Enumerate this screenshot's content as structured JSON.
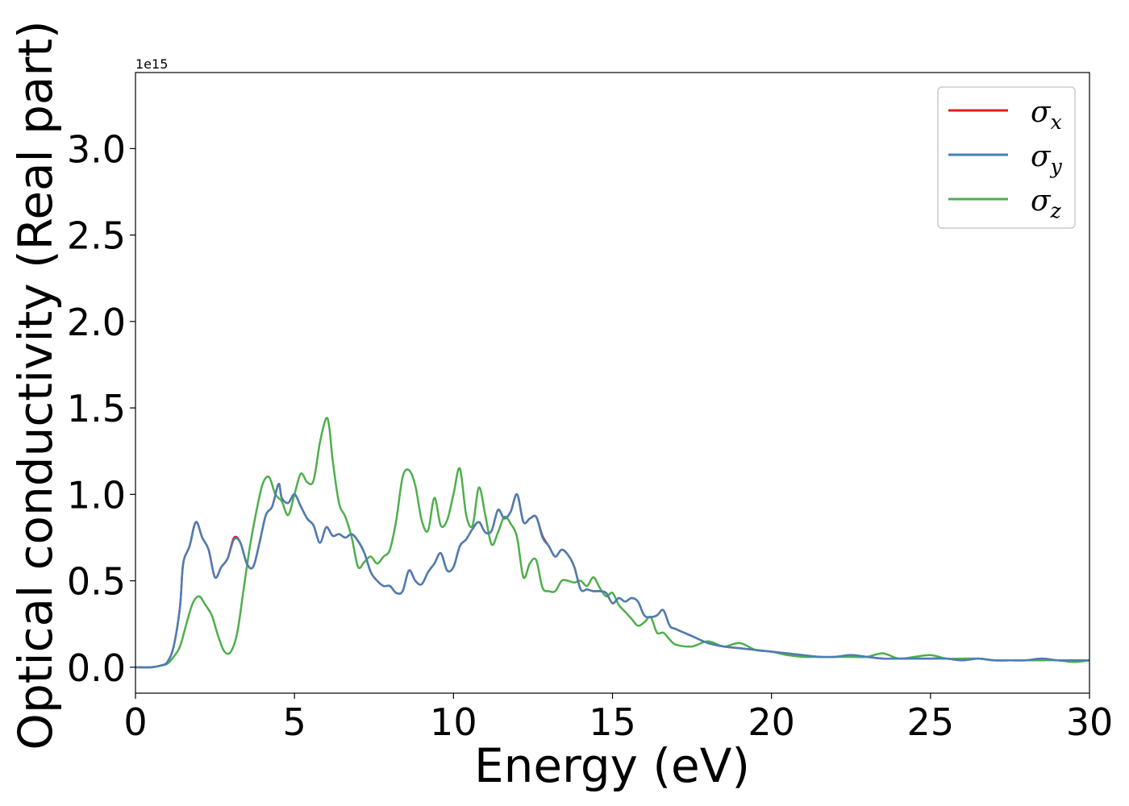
{
  "chart_data": {
    "type": "line",
    "title": "",
    "xlabel": "Energy (eV)",
    "ylabel": "Optical conductivity (Real part)",
    "y_offset_label": "1e15",
    "xlim": [
      0,
      30
    ],
    "ylim": [
      -0.15,
      3.44
    ],
    "x_ticks": [
      0,
      5,
      10,
      15,
      20,
      25,
      30
    ],
    "x_tick_labels": [
      "0",
      "5",
      "10",
      "15",
      "20",
      "25",
      "30"
    ],
    "y_ticks": [
      0.0,
      0.5,
      1.0,
      1.5,
      2.0,
      2.5,
      3.0
    ],
    "y_tick_labels": [
      "0.0",
      "0.5",
      "1.0",
      "1.5",
      "2.0",
      "2.5",
      "3.0"
    ],
    "grid": false,
    "legend_position": "top-right",
    "series": [
      {
        "name": "σx",
        "legend_base": "σ",
        "legend_sub": "x",
        "color": "#e41a1c",
        "x": [
          0,
          0.5,
          0.8,
          1.0,
          1.2,
          1.4,
          1.5,
          1.7,
          1.9,
          2.1,
          2.3,
          2.5,
          2.7,
          2.9,
          3.1,
          3.3,
          3.5,
          3.7,
          3.9,
          4.1,
          4.3,
          4.5,
          4.6,
          4.8,
          5.0,
          5.2,
          5.4,
          5.6,
          5.8,
          6.0,
          6.2,
          6.4,
          6.6,
          6.8,
          7.0,
          7.2,
          7.4,
          7.6,
          7.8,
          8.0,
          8.2,
          8.4,
          8.6,
          8.8,
          9.0,
          9.2,
          9.4,
          9.6,
          9.8,
          10.0,
          10.2,
          10.4,
          10.6,
          10.8,
          11.0,
          11.2,
          11.4,
          11.6,
          11.8,
          12.0,
          12.2,
          12.4,
          12.6,
          12.8,
          13.0,
          13.2,
          13.4,
          13.6,
          13.8,
          14.0,
          14.2,
          14.4,
          14.6,
          14.8,
          15.0,
          15.2,
          15.4,
          15.6,
          15.8,
          16.0,
          16.2,
          16.4,
          16.6,
          16.8,
          17.0,
          17.5,
          18.0,
          18.5,
          19.0,
          19.5,
          20.0,
          20.5,
          21.0,
          21.5,
          22.0,
          22.5,
          23.0,
          23.5,
          24.0,
          24.5,
          25.0,
          25.5,
          26.0,
          26.5,
          27.0,
          27.5,
          28.0,
          28.5,
          29.0,
          29.5,
          30.0
        ],
        "values": [
          0.0,
          0.0,
          0.01,
          0.03,
          0.12,
          0.35,
          0.6,
          0.7,
          0.84,
          0.75,
          0.68,
          0.52,
          0.58,
          0.63,
          0.75,
          0.72,
          0.6,
          0.58,
          0.72,
          0.88,
          0.93,
          1.06,
          0.98,
          0.95,
          1.0,
          0.93,
          0.86,
          0.82,
          0.72,
          0.81,
          0.76,
          0.77,
          0.75,
          0.77,
          0.73,
          0.66,
          0.55,
          0.5,
          0.47,
          0.47,
          0.43,
          0.44,
          0.56,
          0.5,
          0.48,
          0.55,
          0.6,
          0.66,
          0.56,
          0.58,
          0.7,
          0.74,
          0.8,
          0.84,
          0.78,
          0.79,
          0.91,
          0.86,
          0.9,
          1.0,
          0.84,
          0.86,
          0.87,
          0.76,
          0.7,
          0.64,
          0.68,
          0.65,
          0.58,
          0.45,
          0.45,
          0.44,
          0.44,
          0.43,
          0.37,
          0.4,
          0.38,
          0.4,
          0.38,
          0.3,
          0.29,
          0.3,
          0.33,
          0.24,
          0.22,
          0.18,
          0.14,
          0.12,
          0.11,
          0.1,
          0.09,
          0.08,
          0.07,
          0.06,
          0.06,
          0.07,
          0.06,
          0.05,
          0.05,
          0.05,
          0.05,
          0.05,
          0.04,
          0.05,
          0.04,
          0.04,
          0.04,
          0.05,
          0.04,
          0.04,
          0.04
        ],
        "line_width": 2.5
      },
      {
        "name": "σy",
        "legend_base": "σ",
        "legend_sub": "y",
        "color": "#4a7fb5",
        "x": [
          0,
          0.5,
          0.8,
          1.0,
          1.2,
          1.4,
          1.5,
          1.7,
          1.9,
          2.1,
          2.3,
          2.5,
          2.7,
          2.9,
          3.1,
          3.3,
          3.5,
          3.7,
          3.9,
          4.1,
          4.3,
          4.5,
          4.6,
          4.8,
          5.0,
          5.2,
          5.4,
          5.6,
          5.8,
          6.0,
          6.2,
          6.4,
          6.6,
          6.8,
          7.0,
          7.2,
          7.4,
          7.6,
          7.8,
          8.0,
          8.2,
          8.4,
          8.6,
          8.8,
          9.0,
          9.2,
          9.4,
          9.6,
          9.8,
          10.0,
          10.2,
          10.4,
          10.6,
          10.8,
          11.0,
          11.2,
          11.4,
          11.6,
          11.8,
          12.0,
          12.2,
          12.4,
          12.6,
          12.8,
          13.0,
          13.2,
          13.4,
          13.6,
          13.8,
          14.0,
          14.2,
          14.4,
          14.6,
          14.8,
          15.0,
          15.2,
          15.4,
          15.6,
          15.8,
          16.0,
          16.2,
          16.4,
          16.6,
          16.8,
          17.0,
          17.5,
          18.0,
          18.5,
          19.0,
          19.5,
          20.0,
          20.5,
          21.0,
          21.5,
          22.0,
          22.5,
          23.0,
          23.5,
          24.0,
          24.5,
          25.0,
          25.5,
          26.0,
          26.5,
          27.0,
          27.5,
          28.0,
          28.5,
          29.0,
          29.5,
          30.0
        ],
        "values": [
          0.0,
          0.0,
          0.01,
          0.03,
          0.12,
          0.35,
          0.6,
          0.7,
          0.84,
          0.75,
          0.68,
          0.52,
          0.58,
          0.63,
          0.74,
          0.72,
          0.6,
          0.58,
          0.72,
          0.88,
          0.93,
          1.06,
          0.98,
          0.95,
          1.0,
          0.93,
          0.86,
          0.82,
          0.72,
          0.81,
          0.76,
          0.77,
          0.75,
          0.77,
          0.73,
          0.66,
          0.55,
          0.5,
          0.47,
          0.47,
          0.43,
          0.44,
          0.56,
          0.5,
          0.48,
          0.55,
          0.6,
          0.66,
          0.56,
          0.58,
          0.7,
          0.74,
          0.8,
          0.84,
          0.78,
          0.79,
          0.91,
          0.86,
          0.9,
          1.0,
          0.84,
          0.86,
          0.87,
          0.75,
          0.7,
          0.64,
          0.68,
          0.65,
          0.58,
          0.45,
          0.45,
          0.44,
          0.44,
          0.43,
          0.37,
          0.4,
          0.38,
          0.4,
          0.38,
          0.3,
          0.29,
          0.3,
          0.33,
          0.24,
          0.22,
          0.18,
          0.14,
          0.12,
          0.11,
          0.1,
          0.09,
          0.08,
          0.07,
          0.06,
          0.06,
          0.07,
          0.06,
          0.05,
          0.05,
          0.05,
          0.05,
          0.05,
          0.04,
          0.05,
          0.04,
          0.04,
          0.04,
          0.05,
          0.04,
          0.04,
          0.04
        ],
        "line_width": 2.5
      },
      {
        "name": "σz",
        "legend_base": "σ",
        "legend_sub": "z",
        "color": "#4daf4a",
        "x": [
          0,
          0.5,
          0.8,
          1.0,
          1.2,
          1.4,
          1.6,
          1.8,
          2.0,
          2.2,
          2.4,
          2.6,
          2.8,
          3.0,
          3.2,
          3.4,
          3.6,
          3.8,
          4.0,
          4.2,
          4.4,
          4.6,
          4.8,
          5.0,
          5.2,
          5.4,
          5.6,
          5.8,
          6.0,
          6.1,
          6.2,
          6.4,
          6.6,
          6.8,
          7.0,
          7.2,
          7.4,
          7.6,
          7.8,
          8.0,
          8.2,
          8.4,
          8.6,
          8.8,
          9.0,
          9.2,
          9.4,
          9.6,
          9.8,
          10.0,
          10.2,
          10.4,
          10.6,
          10.8,
          11.0,
          11.2,
          11.4,
          11.6,
          11.8,
          12.0,
          12.2,
          12.4,
          12.6,
          12.8,
          13.0,
          13.2,
          13.4,
          13.6,
          13.8,
          14.0,
          14.2,
          14.4,
          14.6,
          14.8,
          15.0,
          15.2,
          15.4,
          15.6,
          15.8,
          16.0,
          16.2,
          16.4,
          16.6,
          16.8,
          17.0,
          17.5,
          18.0,
          18.5,
          19.0,
          19.5,
          20.0,
          20.5,
          21.0,
          21.5,
          22.0,
          22.5,
          23.0,
          23.5,
          24.0,
          24.5,
          25.0,
          25.5,
          26.0,
          26.5,
          27.0,
          27.5,
          28.0,
          28.5,
          29.0,
          29.5,
          30.0
        ],
        "values": [
          0.0,
          0.0,
          0.01,
          0.02,
          0.06,
          0.12,
          0.25,
          0.37,
          0.41,
          0.36,
          0.3,
          0.18,
          0.09,
          0.09,
          0.2,
          0.45,
          0.7,
          0.9,
          1.06,
          1.1,
          1.0,
          0.96,
          0.88,
          1.0,
          1.12,
          1.07,
          1.08,
          1.3,
          1.44,
          1.38,
          1.2,
          0.95,
          0.87,
          0.75,
          0.58,
          0.61,
          0.64,
          0.6,
          0.64,
          0.68,
          0.85,
          1.1,
          1.14,
          1.05,
          0.85,
          0.79,
          0.98,
          0.82,
          0.85,
          1.0,
          1.15,
          0.88,
          0.82,
          1.04,
          0.88,
          0.71,
          0.78,
          0.87,
          0.83,
          0.75,
          0.52,
          0.6,
          0.62,
          0.46,
          0.44,
          0.44,
          0.5,
          0.5,
          0.49,
          0.5,
          0.47,
          0.52,
          0.46,
          0.41,
          0.43,
          0.36,
          0.32,
          0.28,
          0.24,
          0.26,
          0.29,
          0.2,
          0.2,
          0.16,
          0.13,
          0.12,
          0.15,
          0.12,
          0.14,
          0.1,
          0.09,
          0.07,
          0.06,
          0.06,
          0.06,
          0.06,
          0.06,
          0.08,
          0.05,
          0.06,
          0.07,
          0.05,
          0.05,
          0.05,
          0.04,
          0.04,
          0.04,
          0.04,
          0.04,
          0.03,
          0.04
        ],
        "line_width": 2.5
      }
    ]
  }
}
